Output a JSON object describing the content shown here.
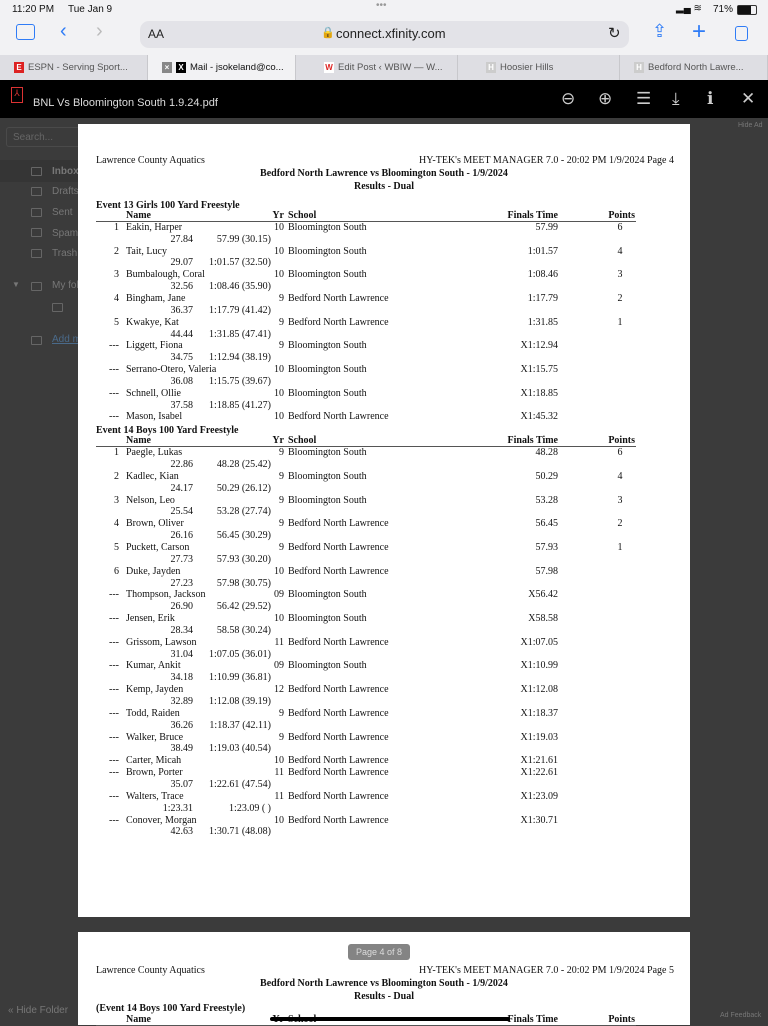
{
  "status": {
    "time": "11:20 PM",
    "date": "Tue Jan 9",
    "battery": "71%"
  },
  "browser": {
    "text_size": "AA",
    "url": "connect.xfinity.com",
    "tabs": [
      {
        "label": "ESPN - Serving Sport...",
        "icon": "espn-icon"
      },
      {
        "label": "Mail - jsokeland@co...",
        "icon": "x-icon"
      },
      {
        "label": "Edit Post ‹ WBIW — W...",
        "icon": "w-icon"
      },
      {
        "label": "Hoosier Hills",
        "icon": "h-icon"
      },
      {
        "label": "Bedford North Lawre...",
        "icon": "h-icon"
      }
    ]
  },
  "viewer": {
    "filename": "BNL Vs Bloomington South 1.9.24.pdf",
    "page_indicator": "Page 4 of 8"
  },
  "mail": {
    "search_placeholder": "Search...",
    "folders": [
      "Inbox",
      "Drafts",
      "Sent",
      "Spam",
      "Trash"
    ],
    "my_folders": "My fol",
    "add": "Add m",
    "hide_folders": "« Hide Folder",
    "hide_ad": "Hide Ad",
    "ad_feedback": "Ad Feedback"
  },
  "doc": {
    "org": "Lawrence County Aquatics",
    "meet": "Bedford North Lawrence vs Bloomington South - 1/9/2024",
    "subtitle": "Results - Dual",
    "page4_software": "HY-TEK's MEET MANAGER 7.0 - 20:02 PM  1/9/2024  Page 4",
    "page5_software": "HY-TEK's MEET MANAGER 7.0 - 20:02 PM  1/9/2024  Page 5",
    "page5_event": "(Event 14  Boys 100 Yard Freestyle)",
    "columns": {
      "name": "Name",
      "yr": "Yr",
      "school": "School",
      "time": "Finals Time",
      "points": "Points"
    },
    "events": [
      {
        "title": "Event 13  Girls 100 Yard Freestyle",
        "results": [
          {
            "place": "1",
            "name": "Eakin, Harper",
            "yr": "10",
            "school": "Bloomington South",
            "time": "57.99",
            "points": "6",
            "split1": "27.84",
            "split2": "57.99 (30.15)"
          },
          {
            "place": "2",
            "name": "Tait, Lucy",
            "yr": "10",
            "school": "Bloomington South",
            "time": "1:01.57",
            "points": "4",
            "split1": "29.07",
            "split2": "1:01.57 (32.50)"
          },
          {
            "place": "3",
            "name": "Bumbalough, Coral",
            "yr": "10",
            "school": "Bloomington South",
            "time": "1:08.46",
            "points": "3",
            "split1": "32.56",
            "split2": "1:08.46 (35.90)"
          },
          {
            "place": "4",
            "name": "Bingham, Jane",
            "yr": "9",
            "school": "Bedford North Lawrence",
            "time": "1:17.79",
            "points": "2",
            "split1": "36.37",
            "split2": "1:17.79 (41.42)"
          },
          {
            "place": "5",
            "name": "Kwakye, Kat",
            "yr": "9",
            "school": "Bedford North Lawrence",
            "time": "1:31.85",
            "points": "1",
            "split1": "44.44",
            "split2": "1:31.85 (47.41)"
          },
          {
            "place": "---",
            "name": "Liggett, Fiona",
            "yr": "9",
            "school": "Bloomington South",
            "time": "X1:12.94",
            "points": "",
            "split1": "34.75",
            "split2": "1:12.94 (38.19)"
          },
          {
            "place": "---",
            "name": "Serrano-Otero, Valeria",
            "yr": "10",
            "school": "Bloomington South",
            "time": "X1:15.75",
            "points": "",
            "split1": "36.08",
            "split2": "1:15.75 (39.67)"
          },
          {
            "place": "---",
            "name": "Schnell, Ollie",
            "yr": "10",
            "school": "Bloomington South",
            "time": "X1:18.85",
            "points": "",
            "split1": "37.58",
            "split2": "1:18.85 (41.27)"
          },
          {
            "place": "---",
            "name": "Mason, Isabel",
            "yr": "10",
            "school": "Bedford North Lawrence",
            "time": "X1:45.32",
            "points": ""
          }
        ]
      },
      {
        "title": "Event 14  Boys 100 Yard Freestyle",
        "results": [
          {
            "place": "1",
            "name": "Paegle, Lukas",
            "yr": "9",
            "school": "Bloomington South",
            "time": "48.28",
            "points": "6",
            "split1": "22.86",
            "split2": "48.28 (25.42)"
          },
          {
            "place": "2",
            "name": "Kadlec, Kian",
            "yr": "9",
            "school": "Bloomington South",
            "time": "50.29",
            "points": "4",
            "split1": "24.17",
            "split2": "50.29 (26.12)"
          },
          {
            "place": "3",
            "name": "Nelson, Leo",
            "yr": "9",
            "school": "Bloomington South",
            "time": "53.28",
            "points": "3",
            "split1": "25.54",
            "split2": "53.28 (27.74)"
          },
          {
            "place": "4",
            "name": "Brown, Oliver",
            "yr": "9",
            "school": "Bedford North Lawrence",
            "time": "56.45",
            "points": "2",
            "split1": "26.16",
            "split2": "56.45 (30.29)"
          },
          {
            "place": "5",
            "name": "Puckett, Carson",
            "yr": "9",
            "school": "Bedford North Lawrence",
            "time": "57.93",
            "points": "1",
            "split1": "27.73",
            "split2": "57.93 (30.20)"
          },
          {
            "place": "6",
            "name": "Duke, Jayden",
            "yr": "10",
            "school": "Bedford North Lawrence",
            "time": "57.98",
            "points": "",
            "split1": "27.23",
            "split2": "57.98 (30.75)"
          },
          {
            "place": "---",
            "name": "Thompson, Jackson",
            "yr": "09",
            "school": "Bloomington South",
            "time": "X56.42",
            "points": "",
            "split1": "26.90",
            "split2": "56.42 (29.52)"
          },
          {
            "place": "---",
            "name": "Jensen, Erik",
            "yr": "10",
            "school": "Bloomington South",
            "time": "X58.58",
            "points": "",
            "split1": "28.34",
            "split2": "58.58 (30.24)"
          },
          {
            "place": "---",
            "name": "Grissom, Lawson",
            "yr": "11",
            "school": "Bedford North Lawrence",
            "time": "X1:07.05",
            "points": "",
            "split1": "31.04",
            "split2": "1:07.05 (36.01)"
          },
          {
            "place": "---",
            "name": "Kumar, Ankit",
            "yr": "09",
            "school": "Bloomington South",
            "time": "X1:10.99",
            "points": "",
            "split1": "34.18",
            "split2": "1:10.99 (36.81)"
          },
          {
            "place": "---",
            "name": "Kemp, Jayden",
            "yr": "12",
            "school": "Bedford North Lawrence",
            "time": "X1:12.08",
            "points": "",
            "split1": "32.89",
            "split2": "1:12.08 (39.19)"
          },
          {
            "place": "---",
            "name": "Todd, Raiden",
            "yr": "9",
            "school": "Bedford North Lawrence",
            "time": "X1:18.37",
            "points": "",
            "split1": "36.26",
            "split2": "1:18.37 (42.11)"
          },
          {
            "place": "---",
            "name": "Walker, Bruce",
            "yr": "9",
            "school": "Bedford North Lawrence",
            "time": "X1:19.03",
            "points": "",
            "split1": "38.49",
            "split2": "1:19.03 (40.54)"
          },
          {
            "place": "---",
            "name": "Carter, Micah",
            "yr": "10",
            "school": "Bedford North Lawrence",
            "time": "X1:21.61",
            "points": ""
          },
          {
            "place": "---",
            "name": "Brown, Porter",
            "yr": "11",
            "school": "Bedford North Lawrence",
            "time": "X1:22.61",
            "points": "",
            "split1": "35.07",
            "split2": "1:22.61 (47.54)"
          },
          {
            "place": "---",
            "name": "Walters, Trace",
            "yr": "11",
            "school": "Bedford North Lawrence",
            "time": "X1:23.09",
            "points": "",
            "split1": "1:23.31",
            "split2": "1:23.09 ( )"
          },
          {
            "place": "---",
            "name": "Conover, Morgan",
            "yr": "10",
            "school": "Bedford North Lawrence",
            "time": "X1:30.71",
            "points": "",
            "split1": "42.63",
            "split2": "1:30.71 (48.08)"
          }
        ]
      }
    ]
  }
}
